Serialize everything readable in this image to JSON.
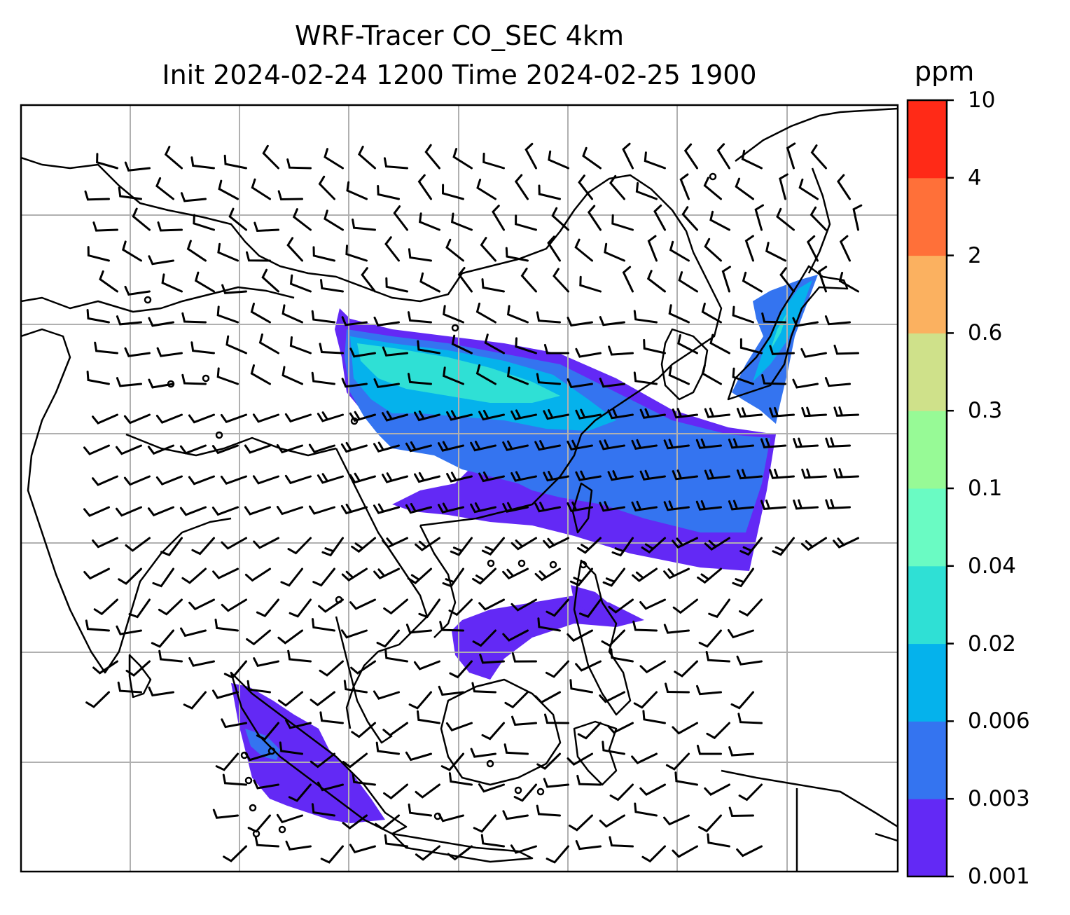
{
  "title": {
    "line1": "WRF-Tracer CO_SEC 4km",
    "line2": "Init 2024-02-24 1200 Time 2024-02-25 1900"
  },
  "colorbar": {
    "unit": "ppm",
    "levels": [
      "0.001",
      "0.003",
      "0.006",
      "0.02",
      "0.04",
      "0.1",
      "0.3",
      "0.6",
      "2",
      "4",
      "10"
    ],
    "colors": [
      "#6329f5",
      "#3474f0",
      "#05b2ec",
      "#2fe0d5",
      "#6afbc3",
      "#97fa96",
      "#cfe18a",
      "#fbb160",
      "#ff7039",
      "#ff2a17"
    ]
  },
  "map": {
    "gridlines": true,
    "wind_barbs": true,
    "coastlines": true
  }
}
